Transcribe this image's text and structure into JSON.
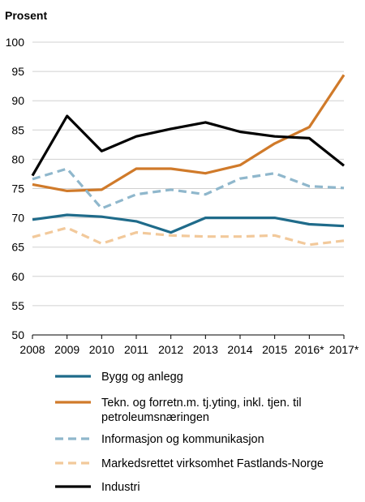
{
  "chart_data": {
    "type": "line",
    "ylabel": "Prosent",
    "ylim": [
      50,
      100
    ],
    "yticks": [
      50,
      55,
      60,
      65,
      70,
      75,
      80,
      85,
      90,
      95,
      100
    ],
    "categories": [
      "2008",
      "2009",
      "2010",
      "2011",
      "2012",
      "2013",
      "2014",
      "2015",
      "2016*",
      "2017*"
    ],
    "grid": "horizontal",
    "legend_position": "bottom",
    "series": [
      {
        "name": "Bygg og anlegg",
        "color": "#1f6b8a",
        "dash": "solid",
        "values": [
          69.7,
          70.5,
          70.2,
          69.4,
          67.5,
          70.0,
          70.0,
          70.0,
          68.9,
          68.6
        ]
      },
      {
        "name": "Tekn. og forretn.m. tj.yting, inkl. tjen. til petroleumsnæringen",
        "color": "#d07a2a",
        "dash": "solid",
        "values": [
          75.7,
          74.6,
          74.8,
          78.4,
          78.4,
          77.6,
          79.0,
          82.7,
          85.5,
          94.4
        ]
      },
      {
        "name": "Informasjon og kommunikasjon",
        "color": "#8fb7cc",
        "dash": "dashed",
        "values": [
          76.6,
          78.4,
          71.6,
          74.0,
          74.8,
          74.0,
          76.7,
          77.6,
          75.4,
          75.1
        ]
      },
      {
        "name": "Markedsrettet virksomhet Fastlands-Norge",
        "color": "#f2c99b",
        "dash": "dashed",
        "values": [
          66.7,
          68.3,
          65.6,
          67.5,
          67.0,
          66.8,
          66.8,
          67.0,
          65.4,
          66.1
        ]
      },
      {
        "name": "Industri",
        "color": "#000000",
        "dash": "solid",
        "values": [
          77.2,
          87.4,
          81.4,
          83.9,
          85.2,
          86.3,
          84.7,
          83.9,
          83.6,
          78.9
        ]
      }
    ]
  }
}
